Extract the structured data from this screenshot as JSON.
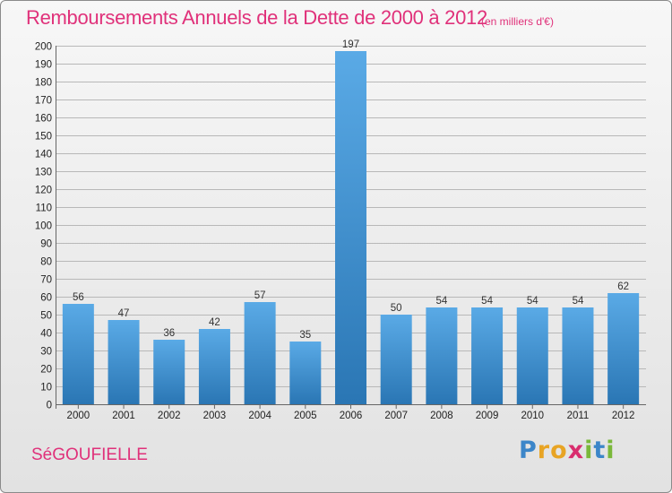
{
  "header": {
    "title": "Remboursements Annuels de la Dette de 2000 à 2012",
    "unit": "(en milliers d'€)"
  },
  "footer": {
    "commune": "SéGOUFIELLE",
    "logo_letters": [
      "P",
      "r",
      "o",
      "x",
      "i",
      "t",
      "i"
    ]
  },
  "colors": {
    "title": "#e0317a",
    "bar_light": "#5aaae6",
    "bar_dark": "#2a76b4"
  },
  "chart_data": {
    "type": "bar",
    "title": "Remboursements Annuels de la Dette de 2000 à 2012",
    "subtitle": "(en milliers d'€)",
    "categories": [
      "2000",
      "2001",
      "2002",
      "2003",
      "2004",
      "2005",
      "2006",
      "2007",
      "2008",
      "2009",
      "2010",
      "2011",
      "2012"
    ],
    "values": [
      56,
      47,
      36,
      42,
      57,
      35,
      197,
      50,
      54,
      54,
      54,
      54,
      62
    ],
    "ylim": [
      0,
      200
    ],
    "ytick_step": 10,
    "grid": true
  }
}
